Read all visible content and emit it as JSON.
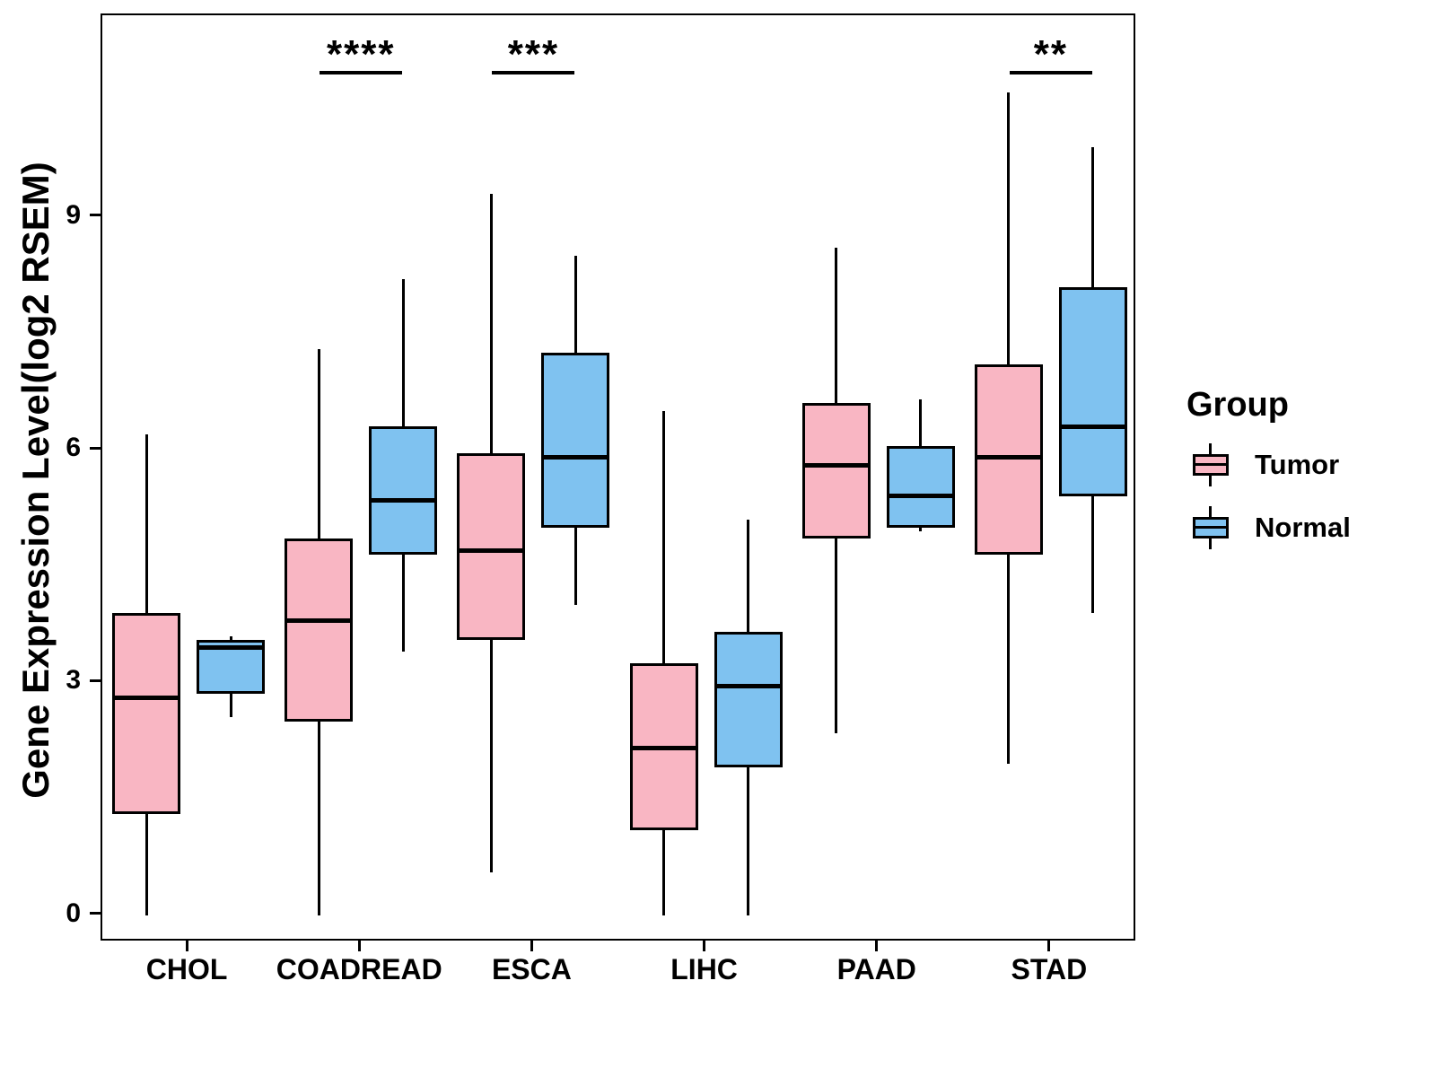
{
  "figure": {
    "legend": {
      "title": "Group",
      "entries": [
        {
          "label": "Tumor",
          "color": "#F9B6C3"
        },
        {
          "label": "Normal",
          "color": "#7FC2F0"
        }
      ]
    }
  },
  "chart_data": {
    "type": "boxplot",
    "title": "",
    "xlabel": "",
    "ylabel": "Gene Expression Level(log2 RSEM)",
    "categories": [
      "CHOL",
      "COADREAD",
      "ESCA",
      "LIHC",
      "PAAD",
      "STAD"
    ],
    "groups": [
      "Tumor",
      "Normal"
    ],
    "colors": {
      "Tumor": "#F9B6C3",
      "Normal": "#7FC2F0"
    },
    "ylim": [
      -0.35,
      11.6
    ],
    "y_ticks": [
      0,
      3,
      6,
      9
    ],
    "grid": false,
    "legend_position": "right",
    "series": [
      {
        "name": "Tumor",
        "boxes": [
          {
            "category": "CHOL",
            "whisker_low": 0.0,
            "q1": 1.3,
            "median": 2.8,
            "q3": 3.9,
            "whisker_high": 6.2
          },
          {
            "category": "COADREAD",
            "whisker_low": 0.0,
            "q1": 2.5,
            "median": 3.8,
            "q3": 4.85,
            "whisker_high": 7.3
          },
          {
            "category": "ESCA",
            "whisker_low": 0.55,
            "q1": 3.55,
            "median": 4.7,
            "q3": 5.95,
            "whisker_high": 9.3
          },
          {
            "category": "LIHC",
            "whisker_low": 0.0,
            "q1": 1.1,
            "median": 2.15,
            "q3": 3.25,
            "whisker_high": 6.5
          },
          {
            "category": "PAAD",
            "whisker_low": 2.35,
            "q1": 4.85,
            "median": 5.8,
            "q3": 6.6,
            "whisker_high": 8.6
          },
          {
            "category": "STAD",
            "whisker_low": 1.95,
            "q1": 4.65,
            "median": 5.9,
            "q3": 7.1,
            "whisker_high": 10.6
          }
        ]
      },
      {
        "name": "Normal",
        "boxes": [
          {
            "category": "CHOL",
            "whisker_low": 2.55,
            "q1": 2.85,
            "median": 3.45,
            "q3": 3.55,
            "whisker_high": 3.6
          },
          {
            "category": "COADREAD",
            "whisker_low": 3.4,
            "q1": 4.65,
            "median": 5.35,
            "q3": 6.3,
            "whisker_high": 8.2
          },
          {
            "category": "ESCA",
            "whisker_low": 4.0,
            "q1": 5.0,
            "median": 5.9,
            "q3": 7.25,
            "whisker_high": 8.5
          },
          {
            "category": "LIHC",
            "whisker_low": 0.0,
            "q1": 1.9,
            "median": 2.95,
            "q3": 3.65,
            "whisker_high": 5.1
          },
          {
            "category": "PAAD",
            "whisker_low": 4.95,
            "q1": 5.0,
            "median": 5.4,
            "q3": 6.05,
            "whisker_high": 6.65
          },
          {
            "category": "STAD",
            "whisker_low": 3.9,
            "q1": 5.4,
            "median": 6.3,
            "q3": 8.1,
            "whisker_high": 9.9
          }
        ]
      }
    ],
    "annotations": [
      {
        "category": "COADREAD",
        "label": "****"
      },
      {
        "category": "ESCA",
        "label": "***"
      },
      {
        "category": "STAD",
        "label": "**"
      }
    ]
  }
}
